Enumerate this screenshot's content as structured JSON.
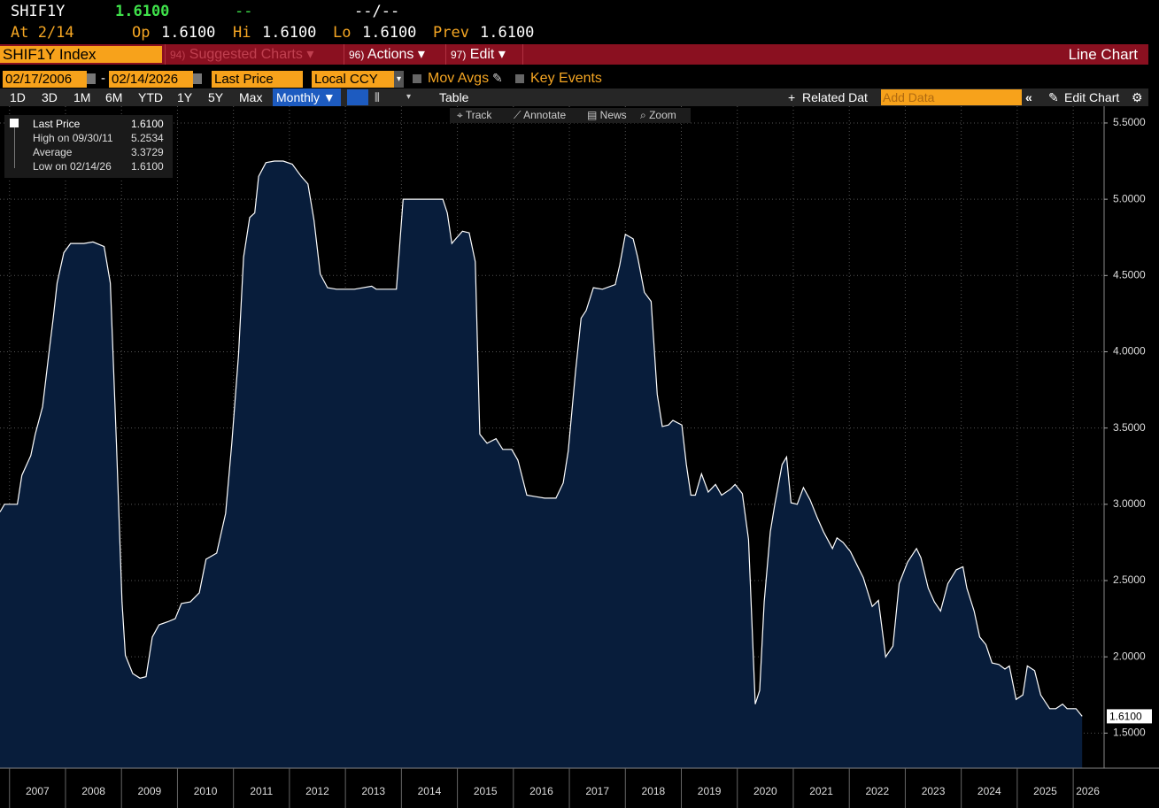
{
  "header": {
    "ticker": "SHIF1Y",
    "price": "1.6100",
    "change": "--",
    "change_pct": "--/--",
    "as_of": "At 2/14",
    "op_label": "Op",
    "op": "1.6100",
    "hi_label": "Hi",
    "hi": "1.6100",
    "lo_label": "Lo",
    "lo": "1.6100",
    "prev_label": "Prev",
    "prev": "1.6100"
  },
  "menu": {
    "security": "SHIF1Y Index",
    "items": [
      {
        "num": "94)",
        "label": "Suggested Charts"
      },
      {
        "num": "96)",
        "label": "Actions"
      },
      {
        "num": "97)",
        "label": "Edit"
      }
    ],
    "chart_kind": "Line Chart"
  },
  "controls": {
    "start_date": "02/17/2006",
    "separator": "-",
    "end_date": "02/14/2026",
    "field": "Last Price",
    "currency": "Local CCY",
    "mov_avgs": "Mov Avgs",
    "key_events": "Key Events"
  },
  "toolbar": {
    "periods": [
      "1D",
      "3D",
      "1M",
      "6M",
      "YTD",
      "1Y",
      "5Y",
      "Max"
    ],
    "frequency": "Monthly",
    "table": "Table",
    "related": "Related Dat",
    "add_data": "Add Data",
    "edit_chart": "Edit Chart"
  },
  "tools": [
    "Track",
    "Annotate",
    "News",
    "Zoom"
  ],
  "chart_data": {
    "type": "area",
    "x": [
      2006.83,
      2006.91,
      2007.14,
      2007.22,
      2007.38,
      2007.46,
      2007.59,
      2007.7,
      2007.78,
      2007.85,
      2007.97,
      2008.09,
      2008.33,
      2008.49,
      2008.69,
      2008.8,
      2008.91,
      2009.01,
      2009.07,
      2009.2,
      2009.33,
      2009.44,
      2009.55,
      2009.67,
      2009.83,
      2009.96,
      2010.07,
      2010.23,
      2010.39,
      2010.51,
      2010.7,
      2010.86,
      2010.97,
      2011.09,
      2011.18,
      2011.29,
      2011.38,
      2011.45,
      2011.58,
      2011.73,
      2011.89,
      2012.05,
      2012.21,
      2012.33,
      2012.44,
      2012.55,
      2012.68,
      2012.84,
      2013.16,
      2013.47,
      2013.55,
      2013.91,
      2014.03,
      2014.74,
      2014.82,
      2014.9,
      2014.97,
      2015.09,
      2015.21,
      2015.32,
      2015.4,
      2015.53,
      2015.69,
      2015.81,
      2015.97,
      2016.08,
      2016.24,
      2016.4,
      2016.56,
      2016.76,
      2016.89,
      2016.98,
      2017.11,
      2017.21,
      2017.3,
      2017.43,
      2017.59,
      2017.82,
      2017.9,
      2018.0,
      2018.14,
      2018.22,
      2018.34,
      2018.46,
      2018.57,
      2018.66,
      2018.77,
      2018.85,
      2019.01,
      2019.09,
      2019.17,
      2019.25,
      2019.36,
      2019.48,
      2019.61,
      2019.72,
      2019.88,
      2019.96,
      2020.09,
      2020.2,
      2020.32,
      2020.4,
      2020.48,
      2020.59,
      2020.67,
      2020.8,
      2020.88,
      2020.96,
      2021.07,
      2021.18,
      2021.3,
      2021.43,
      2021.54,
      2021.7,
      2021.78,
      2021.89,
      2022.02,
      2022.14,
      2022.25,
      2022.41,
      2022.52,
      2022.65,
      2022.78,
      2022.89,
      2023.04,
      2023.2,
      2023.28,
      2023.41,
      2023.52,
      2023.63,
      2023.76,
      2023.91,
      2024.03,
      2024.1,
      2024.23,
      2024.33,
      2024.44,
      2024.55,
      2024.67,
      2024.78,
      2024.86,
      2024.98,
      2025.1,
      2025.18,
      2025.31,
      2025.42,
      2025.58,
      2025.69,
      2025.81,
      2025.89,
      2026.05,
      2026.16
    ],
    "series": [
      {
        "name": "Last Price",
        "color": "#ffffff",
        "fill": "#081d3b",
        "values": [
          2.95,
          3.0,
          3.0,
          3.19,
          3.32,
          3.46,
          3.64,
          3.98,
          4.22,
          4.45,
          4.65,
          4.71,
          4.71,
          4.72,
          4.69,
          4.45,
          3.4,
          2.36,
          2.01,
          1.89,
          1.86,
          1.87,
          2.13,
          2.21,
          2.23,
          2.25,
          2.35,
          2.36,
          2.42,
          2.64,
          2.68,
          2.94,
          3.4,
          3.98,
          4.62,
          4.88,
          4.91,
          5.15,
          5.24,
          5.25,
          5.25,
          5.23,
          5.15,
          5.1,
          4.86,
          4.51,
          4.42,
          4.41,
          4.41,
          4.43,
          4.41,
          4.41,
          5.0,
          5.0,
          4.91,
          4.71,
          4.74,
          4.79,
          4.78,
          4.59,
          3.46,
          3.4,
          3.43,
          3.36,
          3.36,
          3.29,
          3.06,
          3.05,
          3.04,
          3.04,
          3.14,
          3.35,
          3.87,
          4.22,
          4.27,
          4.42,
          4.41,
          4.44,
          4.57,
          4.77,
          4.74,
          4.62,
          4.39,
          4.33,
          3.72,
          3.51,
          3.52,
          3.55,
          3.52,
          3.26,
          3.06,
          3.06,
          3.2,
          3.08,
          3.13,
          3.06,
          3.1,
          3.13,
          3.07,
          2.77,
          1.69,
          1.78,
          2.36,
          2.82,
          3.0,
          3.26,
          3.31,
          3.01,
          3.0,
          3.11,
          3.03,
          2.91,
          2.82,
          2.71,
          2.78,
          2.75,
          2.69,
          2.6,
          2.52,
          2.33,
          2.37,
          2.0,
          2.07,
          2.48,
          2.62,
          2.71,
          2.65,
          2.45,
          2.36,
          2.3,
          2.48,
          2.57,
          2.59,
          2.45,
          2.3,
          2.13,
          2.08,
          1.96,
          1.95,
          1.92,
          1.94,
          1.72,
          1.75,
          1.94,
          1.91,
          1.75,
          1.66,
          1.66,
          1.69,
          1.66,
          1.66,
          1.61
        ]
      }
    ],
    "last_label": "1.6100",
    "legend_stats": [
      {
        "label": "High on 09/30/11",
        "value": "5.2534"
      },
      {
        "label": "Average",
        "value": "3.3729"
      },
      {
        "label": "Low on 02/14/26",
        "value": "1.6100"
      }
    ],
    "legend_value": "1.6100",
    "xlim": [
      2006.83,
      2026.52
    ],
    "xticks": [
      2007,
      2008,
      2009,
      2010,
      2011,
      2012,
      2013,
      2014,
      2015,
      2016,
      2017,
      2018,
      2019,
      2020,
      2021,
      2022,
      2023,
      2024,
      2025,
      2026
    ],
    "ylim": [
      1.27,
      5.61
    ],
    "yticks": [
      {
        "value": 1.5,
        "label": "1.5000"
      },
      {
        "value": 2,
        "label": "2.0000"
      },
      {
        "value": 2.5,
        "label": "2.5000"
      },
      {
        "value": 3,
        "label": "3.0000"
      },
      {
        "value": 3.5,
        "label": "3.5000"
      },
      {
        "value": 4,
        "label": "4.0000"
      },
      {
        "value": 4.5,
        "label": "4.5000"
      },
      {
        "value": 5,
        "label": "5.0000"
      },
      {
        "value": 5.5,
        "label": "5.5000"
      }
    ],
    "grid": true
  }
}
